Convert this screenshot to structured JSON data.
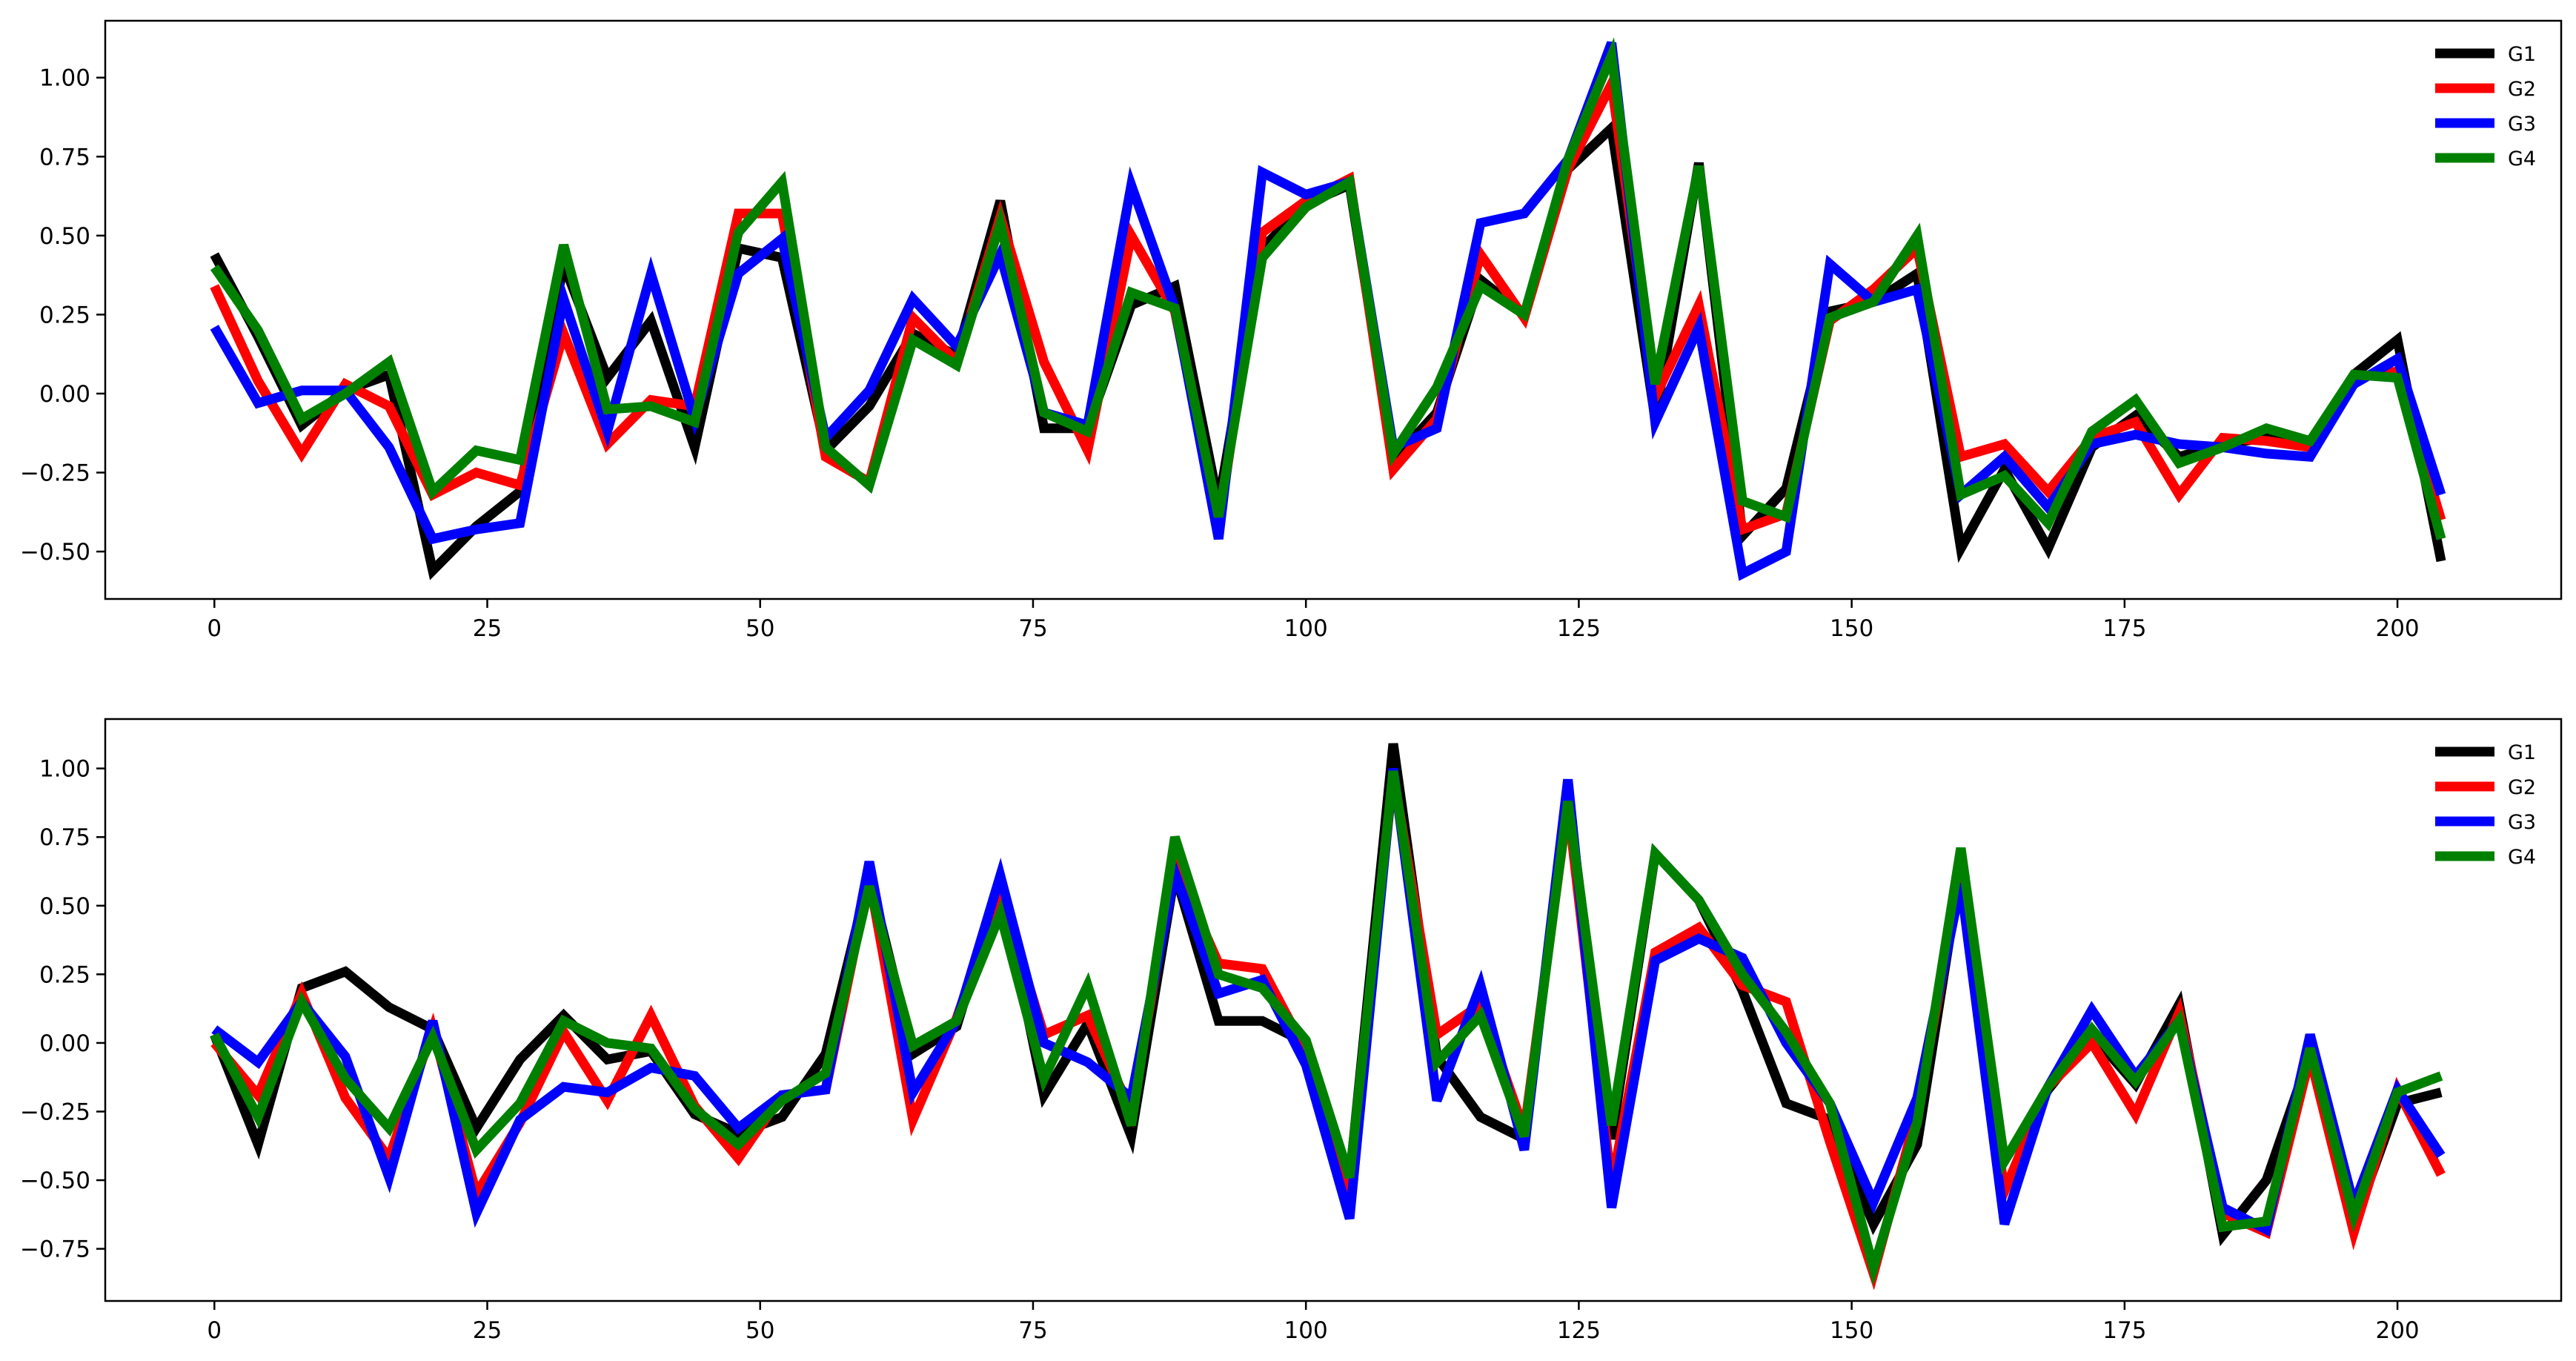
{
  "chart_data": [
    {
      "type": "line",
      "title": "",
      "xlabel": "",
      "ylabel": "",
      "xlim": [
        -10,
        215
      ],
      "ylim": [
        -0.65,
        1.18
      ],
      "xticks": [
        0,
        25,
        50,
        75,
        100,
        125,
        150,
        175,
        200
      ],
      "xtick_labels": [
        "0",
        "25",
        "50",
        "75",
        "100",
        "125",
        "150",
        "175",
        "200"
      ],
      "yticks": [
        -0.5,
        -0.25,
        0.0,
        0.25,
        0.5,
        0.75,
        1.0
      ],
      "ytick_labels": [
        "−0.50",
        "−0.25",
        "0.00",
        "0.25",
        "0.50",
        "0.75",
        "1.00"
      ],
      "grid": false,
      "legend_position": "top-right",
      "x": [
        0,
        4,
        8,
        12,
        16,
        20,
        24,
        28,
        32,
        36,
        40,
        44,
        48,
        52,
        56,
        60,
        64,
        68,
        72,
        76,
        80,
        84,
        88,
        92,
        96,
        100,
        104,
        108,
        112,
        116,
        120,
        124,
        128,
        132,
        136,
        140,
        144,
        148,
        152,
        156,
        160,
        164,
        168,
        172,
        176,
        180,
        184,
        188,
        192,
        196,
        200,
        204
      ],
      "series": [
        {
          "name": "G1",
          "color": "#000000",
          "values": [
            0.44,
            0.18,
            -0.1,
            0.01,
            0.06,
            -0.56,
            -0.42,
            -0.31,
            0.41,
            0.05,
            0.23,
            -0.17,
            0.46,
            0.43,
            -0.18,
            -0.04,
            0.19,
            0.12,
            0.61,
            -0.11,
            -0.11,
            0.28,
            0.34,
            -0.35,
            0.46,
            0.6,
            0.66,
            -0.21,
            -0.06,
            0.36,
            0.25,
            0.71,
            0.84,
            -0.08,
            0.73,
            -0.45,
            -0.3,
            0.26,
            0.29,
            0.38,
            -0.49,
            -0.24,
            -0.49,
            -0.17,
            -0.07,
            -0.2,
            -0.16,
            -0.14,
            -0.16,
            0.06,
            0.17,
            -0.53
          ]
        },
        {
          "name": "G2",
          "color": "#ff0000",
          "values": [
            0.34,
            0.04,
            -0.19,
            0.03,
            -0.04,
            -0.32,
            -0.25,
            -0.29,
            0.19,
            -0.16,
            -0.02,
            -0.04,
            0.57,
            0.57,
            -0.2,
            -0.28,
            0.24,
            0.1,
            0.56,
            0.1,
            -0.18,
            0.5,
            0.26,
            -0.42,
            0.51,
            0.61,
            0.68,
            -0.24,
            -0.08,
            0.44,
            0.24,
            0.71,
            0.98,
            -0.01,
            0.28,
            -0.43,
            -0.38,
            0.23,
            0.33,
            0.46,
            -0.2,
            -0.16,
            -0.31,
            -0.14,
            -0.09,
            -0.32,
            -0.14,
            -0.15,
            -0.17,
            0.05,
            0.07,
            -0.4
          ]
        },
        {
          "name": "G3",
          "color": "#0000ff",
          "values": [
            0.21,
            -0.03,
            0.01,
            0.01,
            -0.17,
            -0.46,
            -0.43,
            -0.41,
            0.3,
            -0.12,
            0.38,
            -0.08,
            0.38,
            0.49,
            -0.14,
            0.01,
            0.3,
            0.15,
            0.44,
            -0.06,
            -0.1,
            0.66,
            0.27,
            -0.46,
            0.7,
            0.63,
            0.67,
            -0.17,
            -0.11,
            0.54,
            0.57,
            0.74,
            1.11,
            -0.09,
            0.21,
            -0.57,
            -0.5,
            0.41,
            0.29,
            0.33,
            -0.32,
            -0.2,
            -0.36,
            -0.16,
            -0.13,
            -0.16,
            -0.17,
            -0.19,
            -0.2,
            0.03,
            0.11,
            -0.32
          ]
        },
        {
          "name": "G4",
          "color": "#008000",
          "values": [
            0.4,
            0.2,
            -0.08,
            0.0,
            0.1,
            -0.31,
            -0.18,
            -0.21,
            0.47,
            -0.05,
            -0.04,
            -0.09,
            0.51,
            0.67,
            -0.17,
            -0.29,
            0.17,
            0.09,
            0.54,
            -0.06,
            -0.12,
            0.32,
            0.27,
            -0.39,
            0.43,
            0.59,
            0.67,
            -0.19,
            0.02,
            0.34,
            0.25,
            0.74,
            1.07,
            0.03,
            0.72,
            -0.34,
            -0.39,
            0.24,
            0.29,
            0.5,
            -0.32,
            -0.26,
            -0.41,
            -0.12,
            -0.02,
            -0.22,
            -0.17,
            -0.11,
            -0.15,
            0.06,
            0.05,
            -0.46
          ]
        }
      ]
    },
    {
      "type": "line",
      "title": "",
      "xlabel": "",
      "ylabel": "",
      "xlim": [
        -10,
        215
      ],
      "ylim": [
        -0.94,
        1.18
      ],
      "xticks": [
        0,
        25,
        50,
        75,
        100,
        125,
        150,
        175,
        200
      ],
      "xtick_labels": [
        "0",
        "25",
        "50",
        "75",
        "100",
        "125",
        "150",
        "175",
        "200"
      ],
      "yticks": [
        -0.75,
        -0.5,
        -0.25,
        0.0,
        0.25,
        0.5,
        0.75,
        1.0
      ],
      "ytick_labels": [
        "−0.75",
        "−0.50",
        "−0.25",
        "0.00",
        "0.25",
        "0.50",
        "0.75",
        "1.00"
      ],
      "grid": false,
      "legend_position": "top-right",
      "x": [
        0,
        4,
        8,
        12,
        16,
        20,
        24,
        28,
        32,
        36,
        40,
        44,
        48,
        52,
        56,
        60,
        64,
        68,
        72,
        76,
        80,
        84,
        88,
        92,
        96,
        100,
        104,
        108,
        112,
        116,
        120,
        124,
        128,
        132,
        136,
        140,
        144,
        148,
        152,
        156,
        160,
        164,
        168,
        172,
        176,
        180,
        184,
        188,
        192,
        196,
        200,
        204
      ],
      "series": [
        {
          "name": "G1",
          "color": "#000000",
          "values": [
            0.03,
            -0.37,
            0.2,
            0.26,
            0.13,
            0.05,
            -0.31,
            -0.06,
            0.1,
            -0.06,
            -0.03,
            -0.26,
            -0.33,
            -0.27,
            -0.04,
            0.61,
            -0.04,
            0.06,
            0.58,
            -0.19,
            0.07,
            -0.34,
            0.62,
            0.08,
            0.08,
            0.0,
            -0.5,
            1.09,
            -0.05,
            -0.27,
            -0.35,
            0.9,
            -0.35,
            0.69,
            0.52,
            0.19,
            -0.22,
            -0.28,
            -0.66,
            -0.37,
            0.64,
            -0.43,
            -0.17,
            0.03,
            -0.15,
            0.14,
            -0.7,
            -0.5,
            -0.04,
            -0.66,
            -0.22,
            -0.18
          ]
        },
        {
          "name": "G2",
          "color": "#ff0000",
          "values": [
            0.0,
            -0.19,
            0.18,
            -0.2,
            -0.42,
            0.05,
            -0.55,
            -0.29,
            0.04,
            -0.21,
            0.1,
            -0.23,
            -0.42,
            -0.19,
            -0.17,
            0.6,
            -0.28,
            0.09,
            0.55,
            0.03,
            0.1,
            -0.25,
            0.65,
            0.29,
            0.27,
            -0.03,
            -0.55,
            0.98,
            0.03,
            0.14,
            -0.32,
            0.87,
            -0.52,
            0.33,
            0.42,
            0.21,
            0.15,
            -0.36,
            -0.84,
            -0.25,
            0.61,
            -0.54,
            -0.16,
            0.0,
            -0.26,
            0.11,
            -0.62,
            -0.69,
            -0.05,
            -0.69,
            -0.17,
            -0.48
          ]
        },
        {
          "name": "G3",
          "color": "#0000ff",
          "values": [
            0.05,
            -0.07,
            0.15,
            -0.05,
            -0.49,
            0.08,
            -0.62,
            -0.28,
            -0.16,
            -0.18,
            -0.09,
            -0.12,
            -0.31,
            -0.19,
            -0.17,
            0.66,
            -0.18,
            0.08,
            0.61,
            0.0,
            -0.07,
            -0.2,
            0.62,
            0.18,
            0.23,
            -0.08,
            -0.64,
            1.0,
            -0.21,
            0.21,
            -0.39,
            0.96,
            -0.6,
            0.3,
            0.38,
            0.31,
            0.0,
            -0.22,
            -0.58,
            -0.2,
            0.58,
            -0.66,
            -0.16,
            0.12,
            -0.12,
            0.08,
            -0.6,
            -0.68,
            0.03,
            -0.59,
            -0.17,
            -0.41
          ]
        },
        {
          "name": "G4",
          "color": "#008000",
          "values": [
            0.03,
            -0.27,
            0.15,
            -0.13,
            -0.31,
            0.02,
            -0.39,
            -0.22,
            0.08,
            0.0,
            -0.02,
            -0.24,
            -0.37,
            -0.21,
            -0.11,
            0.57,
            -0.01,
            0.08,
            0.47,
            -0.13,
            0.21,
            -0.3,
            0.75,
            0.25,
            0.2,
            0.01,
            -0.49,
            0.99,
            -0.07,
            0.1,
            -0.34,
            0.88,
            -0.3,
            0.69,
            0.52,
            0.25,
            0.04,
            -0.22,
            -0.82,
            -0.29,
            0.71,
            -0.43,
            -0.16,
            0.05,
            -0.14,
            0.08,
            -0.67,
            -0.65,
            -0.02,
            -0.63,
            -0.18,
            -0.12
          ]
        }
      ]
    }
  ]
}
